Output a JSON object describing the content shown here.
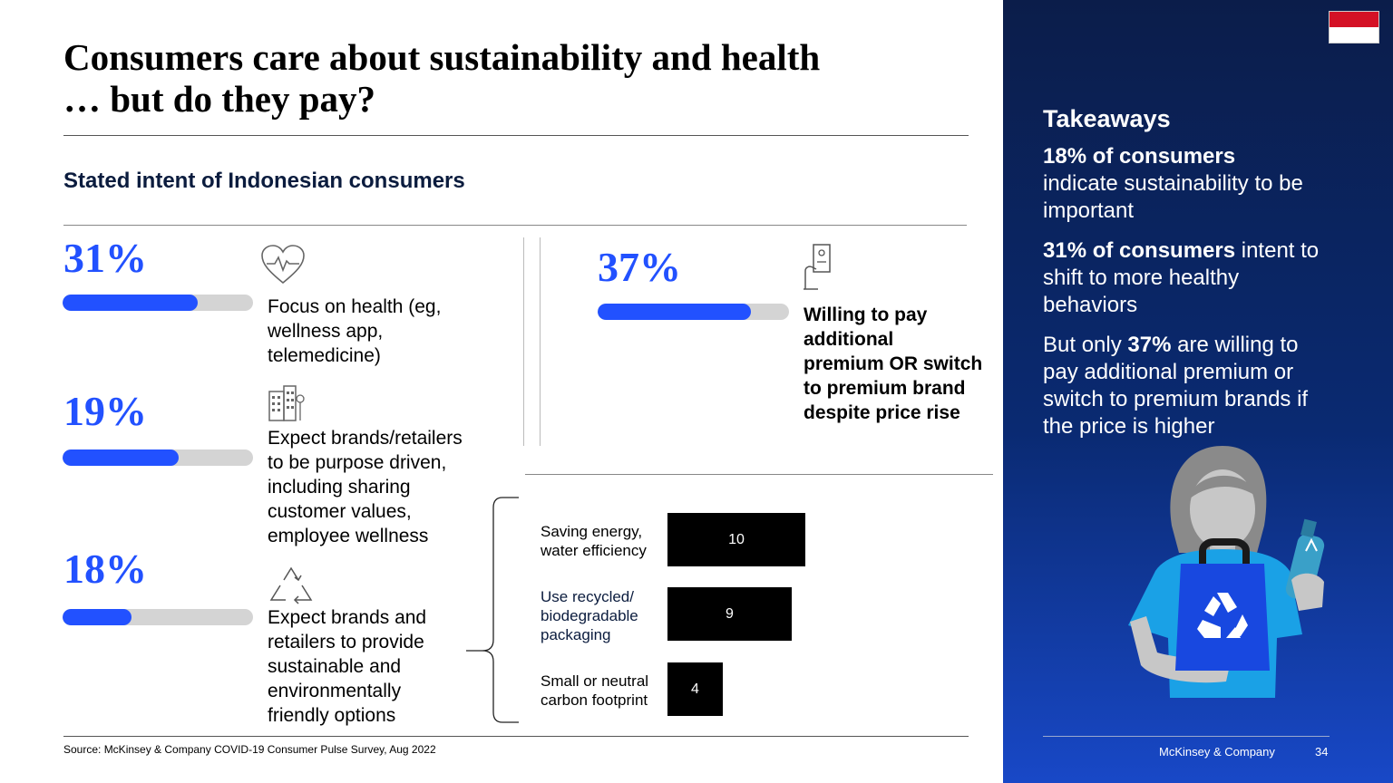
{
  "title_line1": "Consumers care about sustainability and health",
  "title_line2": "… but do they pay?",
  "subtitle": "Stated intent of Indonesian consumers",
  "metrics": [
    {
      "pct": "31%",
      "fill": 0.71,
      "icon": "heart-rate-icon",
      "lines": [
        "Focus on health (eg,",
        "wellness app,",
        "telemedicine)"
      ]
    },
    {
      "pct": "19%",
      "fill": 0.61,
      "icon": "city-buildings-icon",
      "lines": [
        "Expect brands/retailers",
        "to be purpose driven,",
        "including sharing",
        "customer values,",
        "employee wellness"
      ]
    },
    {
      "pct": "18%",
      "fill": 0.36,
      "icon": "recycle-icon",
      "lines": [
        "Expect brands and",
        "retailers to provide",
        "sustainable and",
        "environmentally",
        "friendly options"
      ]
    }
  ],
  "pay": {
    "pct": "37%",
    "fill": 0.8,
    "icon": "payment-hand-icon",
    "lines": [
      "Willing to pay",
      "additional",
      "premium OR switch",
      "to premium brand",
      "despite price rise"
    ]
  },
  "breakdown": [
    {
      "lines": [
        "Saving energy,",
        "water efficiency"
      ],
      "value": 10
    },
    {
      "lines": [
        "Use recycled/",
        "biodegradable",
        "packaging"
      ],
      "value": 9
    },
    {
      "lines": [
        "Small or neutral",
        "carbon footprint"
      ],
      "value": 4
    }
  ],
  "source": "Source: McKinsey & Company COVID-19 Consumer Pulse Survey, Aug 2022",
  "takeaways": {
    "heading": "Takeaways",
    "p1_bold": "18% of consumers",
    "p1_rest": "indicate sustainability to be important",
    "p2_bold": "31% of consumers",
    "p2_rest": " intent to shift to more healthy behaviors",
    "p3_pre": "But only ",
    "p3_bold": "37%",
    "p3_rest": " are willing to pay additional premium or switch to premium brands if the price is higher"
  },
  "footer": {
    "brand": "McKinsey & Company",
    "page": "34"
  },
  "colors": {
    "accent": "#2251ff",
    "track": "#d4d4d4",
    "panel": "#0a2a72",
    "flag_red": "#d41125"
  }
}
